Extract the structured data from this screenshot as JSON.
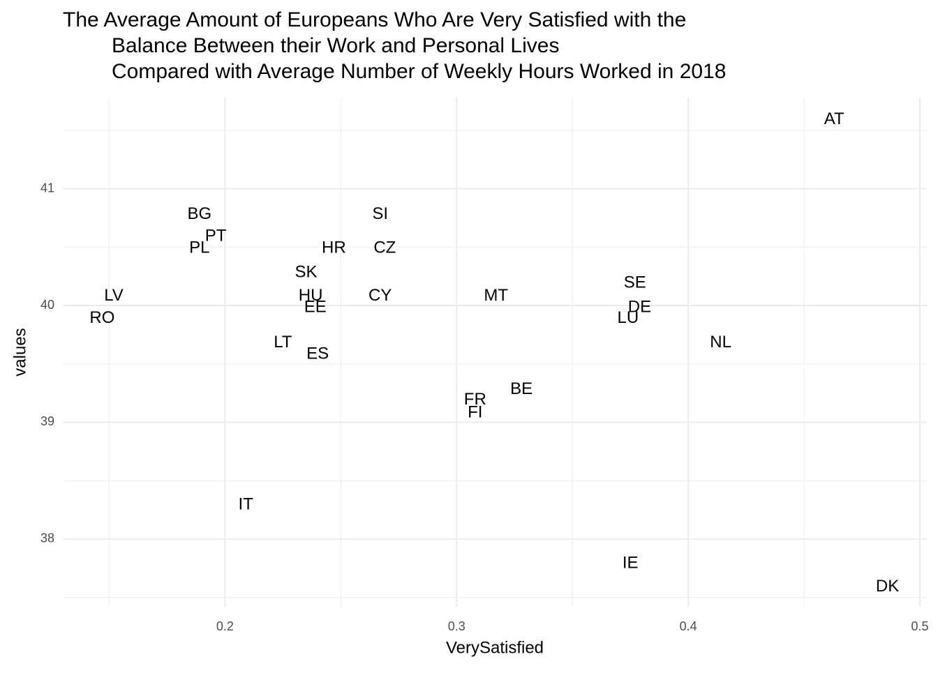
{
  "chart_data": {
    "type": "scatter",
    "title": [
      "The Average Amount of Europeans Who Are Very Satisfied with the",
      "Balance Between their Work and Personal Lives",
      "Compared with Average Number of Weekly Hours Worked in 2018"
    ],
    "x_label": "VerySatisfied",
    "y_label": "values",
    "labels": [
      "AT",
      "BG",
      "PT",
      "PL",
      "SI",
      "HR",
      "CZ",
      "SK",
      "LV",
      "HU",
      "EE",
      "CY",
      "MT",
      "RO",
      "LT",
      "ES",
      "SE",
      "DE",
      "LU",
      "NL",
      "BE",
      "FR",
      "FI",
      "IT",
      "IE",
      "DK"
    ],
    "x": [
      0.463,
      0.189,
      0.196,
      0.189,
      0.267,
      0.247,
      0.269,
      0.235,
      0.152,
      0.237,
      0.239,
      0.267,
      0.317,
      0.147,
      0.225,
      0.24,
      0.377,
      0.379,
      0.374,
      0.414,
      0.328,
      0.308,
      0.308,
      0.209,
      0.375,
      0.486
    ],
    "values": [
      41.59,
      40.78,
      40.59,
      40.49,
      40.78,
      40.49,
      40.49,
      40.28,
      40.08,
      40.08,
      39.98,
      40.08,
      40.08,
      39.89,
      39.68,
      39.58,
      40.19,
      39.98,
      39.89,
      39.68,
      39.28,
      39.19,
      39.08,
      38.29,
      37.79,
      37.59
    ],
    "color": "#000000",
    "xlim": [
      0.13,
      0.503
    ],
    "ylim": [
      37.42,
      41.78
    ],
    "xticks": [
      0.2,
      0.3,
      0.4,
      0.5
    ],
    "yticks": [
      38,
      39,
      40,
      41
    ],
    "grid": true
  }
}
